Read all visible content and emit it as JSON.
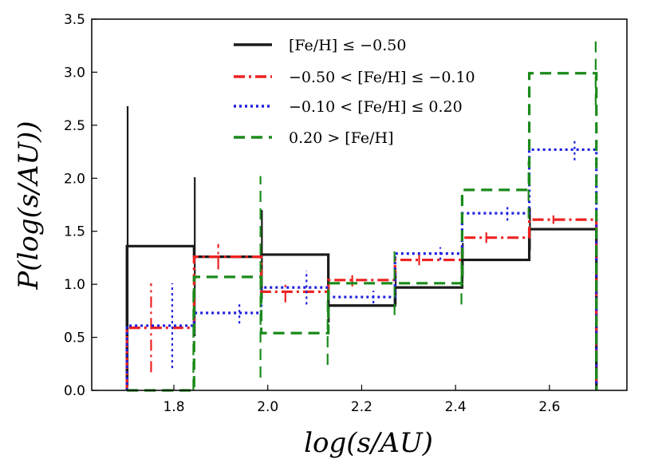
{
  "chart_data": {
    "type": "histogram-step",
    "xlabel": "log(s/AU)",
    "ylabel": "P(log(s/AU))",
    "xlim": [
      1.625,
      2.765
    ],
    "ylim": [
      0,
      3.5
    ],
    "x_ticks": [
      "1.8",
      "2.0",
      "2.2",
      "2.4",
      "2.6"
    ],
    "x_tick_values": [
      1.8,
      2.0,
      2.2,
      2.4,
      2.6
    ],
    "y_ticks": [
      "0.0",
      "0.5",
      "1.0",
      "1.5",
      "2.0",
      "2.5",
      "3.0",
      "3.5"
    ],
    "y_tick_values": [
      0.0,
      0.5,
      1.0,
      1.5,
      2.0,
      2.5,
      3.0,
      3.5
    ],
    "bin_edges": [
      1.7,
      1.843,
      1.986,
      2.129,
      2.271,
      2.414,
      2.557,
      2.7
    ],
    "legend_position": "upper-center",
    "series": [
      {
        "name": "[Fe/H] ≤ −0.50",
        "color": "#1a1a1a",
        "dash": "solid",
        "offset": -0.07,
        "values": [
          1.36,
          1.26,
          1.28,
          0.8,
          0.97,
          1.23,
          1.52
        ],
        "errors": [
          1.32,
          0.75,
          0.42,
          0.16,
          0.16,
          0.16,
          0.2
        ]
      },
      {
        "name": "−0.50 < [Fe/H] ≤ −0.10",
        "color": "#ee2222",
        "dash": "dashdot",
        "offset": -0.02,
        "values": [
          0.59,
          1.26,
          0.93,
          1.04,
          1.23,
          1.44,
          1.61
        ],
        "errors": [
          0.42,
          0.12,
          0.1,
          0.06,
          0.05,
          0.05,
          0.04
        ]
      },
      {
        "name": "−0.10 < [Fe/H] ≤ 0.20",
        "color": "#1f1fe0",
        "dash": "dotted",
        "offset": 0.025,
        "values": [
          0.61,
          0.73,
          0.97,
          0.88,
          1.29,
          1.67,
          2.27
        ],
        "errors": [
          0.4,
          0.1,
          0.16,
          0.06,
          0.06,
          0.07,
          0.1
        ]
      },
      {
        "name": "0.20 > [Fe/H]",
        "color": "#1a8a1a",
        "dash": "dashed",
        "offset": 0.07,
        "values": [
          0.0,
          1.07,
          0.54,
          1.01,
          1.01,
          1.89,
          2.99
        ],
        "errors": [
          0.98,
          0.95,
          0.3,
          0.3,
          0.2,
          0.27,
          0.3
        ]
      }
    ]
  }
}
